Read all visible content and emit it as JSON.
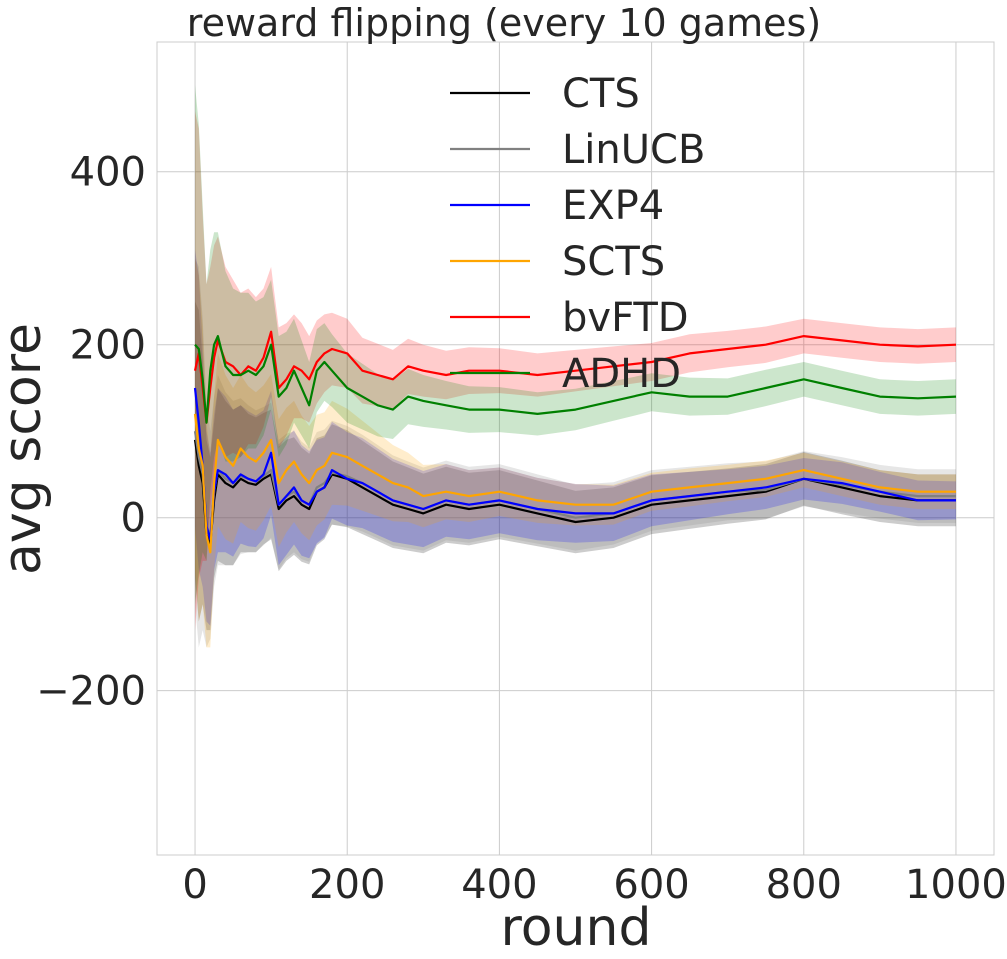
{
  "chart_data": {
    "type": "line",
    "title": "reward flipping (every 10 games)",
    "xlabel": "round",
    "ylabel": "avg score",
    "xlim": [
      -50,
      1050
    ],
    "ylim": [
      -390,
      550
    ],
    "xticks": [
      0,
      200,
      400,
      600,
      800,
      1000
    ],
    "yticks": [
      -200,
      0,
      200,
      400
    ],
    "xtick_labels": [
      "0",
      "200",
      "400",
      "600",
      "800",
      "1000"
    ],
    "ytick_labels": [
      "−200",
      "0",
      "200",
      "400"
    ],
    "grid": true,
    "legend_position": "top-center",
    "x": [
      0,
      5,
      10,
      15,
      20,
      25,
      30,
      40,
      50,
      60,
      70,
      80,
      90,
      100,
      110,
      120,
      130,
      140,
      150,
      160,
      170,
      180,
      200,
      220,
      240,
      260,
      280,
      300,
      330,
      360,
      400,
      450,
      500,
      550,
      600,
      650,
      700,
      750,
      800,
      850,
      900,
      950,
      1000
    ],
    "series": [
      {
        "name": "CTS",
        "color": "#000000",
        "values": [
          90,
          60,
          40,
          -20,
          -30,
          20,
          50,
          40,
          35,
          45,
          40,
          38,
          45,
          50,
          10,
          20,
          25,
          15,
          10,
          30,
          35,
          50,
          45,
          35,
          25,
          15,
          10,
          5,
          15,
          10,
          15,
          5,
          -5,
          0,
          15,
          20,
          25,
          30,
          45,
          35,
          25,
          20,
          20
        ],
        "band": [
          160,
          180,
          140,
          110,
          100,
          90,
          100,
          95,
          90,
          85,
          80,
          78,
          76,
          75,
          72,
          70,
          68,
          66,
          64,
          62,
          60,
          58,
          56,
          54,
          52,
          50,
          48,
          46,
          44,
          42,
          40,
          38,
          36,
          35,
          34,
          33,
          32,
          32,
          31,
          31,
          30,
          30,
          30
        ]
      },
      {
        "name": "LinUCB",
        "color": "#808080",
        "values": [
          100,
          70,
          50,
          -10,
          -20,
          30,
          55,
          45,
          40,
          48,
          45,
          42,
          48,
          55,
          15,
          25,
          30,
          20,
          15,
          35,
          40,
          52,
          48,
          40,
          30,
          20,
          15,
          10,
          20,
          15,
          20,
          10,
          0,
          5,
          20,
          25,
          30,
          32,
          45,
          38,
          30,
          25,
          25
        ],
        "band": [
          200,
          220,
          180,
          140,
          120,
          110,
          110,
          100,
          95,
          90,
          85,
          82,
          80,
          78,
          75,
          72,
          70,
          68,
          66,
          64,
          62,
          60,
          58,
          56,
          54,
          52,
          50,
          48,
          46,
          44,
          42,
          40,
          38,
          36,
          35,
          34,
          33,
          33,
          32,
          32,
          31,
          31,
          31
        ]
      },
      {
        "name": "EXP4",
        "color": "#0000ff",
        "values": [
          150,
          110,
          60,
          -10,
          -25,
          30,
          55,
          50,
          40,
          50,
          45,
          42,
          50,
          75,
          15,
          25,
          35,
          20,
          15,
          30,
          35,
          55,
          45,
          40,
          30,
          20,
          15,
          10,
          20,
          15,
          20,
          10,
          5,
          5,
          20,
          25,
          30,
          35,
          45,
          40,
          30,
          20,
          20
        ],
        "band": [
          160,
          170,
          140,
          110,
          100,
          90,
          95,
          90,
          85,
          80,
          78,
          76,
          74,
          72,
          70,
          68,
          66,
          64,
          62,
          60,
          58,
          56,
          54,
          52,
          50,
          48,
          46,
          44,
          42,
          40,
          38,
          36,
          34,
          32,
          30,
          28,
          26,
          25,
          24,
          24,
          23,
          23,
          22
        ]
      },
      {
        "name": "SCTS",
        "color": "#ffa500",
        "values": [
          120,
          80,
          60,
          -20,
          -40,
          40,
          90,
          70,
          60,
          80,
          70,
          65,
          75,
          90,
          40,
          55,
          65,
          50,
          40,
          55,
          60,
          75,
          70,
          60,
          50,
          40,
          35,
          25,
          30,
          25,
          30,
          20,
          15,
          15,
          30,
          35,
          40,
          45,
          55,
          45,
          35,
          30,
          30
        ],
        "band": [
          180,
          200,
          160,
          130,
          110,
          100,
          100,
          95,
          90,
          85,
          82,
          80,
          78,
          76,
          74,
          72,
          70,
          68,
          66,
          64,
          62,
          60,
          56,
          52,
          48,
          44,
          40,
          36,
          32,
          30,
          28,
          26,
          24,
          23,
          22,
          22,
          21,
          21,
          20,
          20,
          20,
          20,
          20
        ]
      },
      {
        "name": "bvFTD",
        "color": "#ff0000",
        "values": [
          170,
          190,
          150,
          110,
          150,
          185,
          205,
          180,
          175,
          165,
          175,
          170,
          185,
          215,
          150,
          160,
          175,
          170,
          160,
          180,
          190,
          195,
          190,
          170,
          165,
          160,
          175,
          170,
          165,
          170,
          170,
          165,
          170,
          175,
          180,
          190,
          195,
          200,
          210,
          205,
          200,
          198,
          200
        ],
        "band": [
          300,
          260,
          200,
          160,
          140,
          130,
          120,
          110,
          100,
          95,
          90,
          85,
          80,
          75,
          70,
          65,
          60,
          55,
          50,
          48,
          45,
          42,
          40,
          38,
          36,
          34,
          32,
          30,
          28,
          27,
          26,
          25,
          24,
          23,
          22,
          22,
          21,
          21,
          20,
          20,
          20,
          20,
          20
        ]
      },
      {
        "name": "ADHD",
        "color": "#008000",
        "values": [
          200,
          195,
          160,
          110,
          170,
          200,
          210,
          175,
          165,
          165,
          170,
          165,
          175,
          200,
          140,
          150,
          170,
          150,
          130,
          170,
          180,
          170,
          150,
          140,
          130,
          125,
          140,
          135,
          130,
          125,
          125,
          120,
          125,
          135,
          145,
          140,
          140,
          150,
          160,
          150,
          140,
          138,
          140
        ],
        "band": [
          300,
          260,
          200,
          160,
          140,
          130,
          120,
          110,
          100,
          95,
          90,
          85,
          80,
          75,
          70,
          65,
          60,
          55,
          50,
          48,
          45,
          42,
          40,
          38,
          36,
          34,
          32,
          30,
          28,
          27,
          26,
          25,
          24,
          23,
          22,
          22,
          21,
          21,
          20,
          20,
          20,
          20,
          20
        ]
      }
    ]
  }
}
